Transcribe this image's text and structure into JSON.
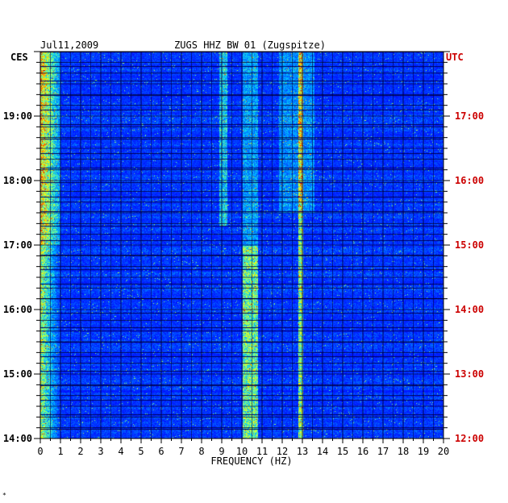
{
  "header": {
    "date": "Jul11,2009",
    "station": "ZUGS HHZ BW 01 (Zugspitze)",
    "left_tz": "CES",
    "right_tz": "UTC"
  },
  "chart_data": {
    "type": "heatmap",
    "title": "ZUGS HHZ BW 01 (Zugspitze)",
    "date": "Jul11,2009",
    "xlabel": "FREQUENCY (HZ)",
    "xlim": [
      0,
      20
    ],
    "x_ticks": [
      "0",
      "1",
      "2",
      "3",
      "4",
      "5",
      "6",
      "7",
      "8",
      "9",
      "10",
      "11",
      "12",
      "13",
      "14",
      "15",
      "16",
      "17",
      "18",
      "19",
      "20"
    ],
    "y_left_label": "CES",
    "y_right_label": "UTC",
    "y_range_hours_local": [
      14.0,
      20.0
    ],
    "y_ticks_left": [
      {
        "value": 19,
        "label": "19:00"
      },
      {
        "value": 18,
        "label": "18:00"
      },
      {
        "value": 17,
        "label": "17:00"
      },
      {
        "value": 16,
        "label": "16:00"
      },
      {
        "value": 15,
        "label": "15:00"
      },
      {
        "value": 14,
        "label": "14:00"
      }
    ],
    "y_ticks_right": [
      {
        "value": 19,
        "label": "17:00"
      },
      {
        "value": 18,
        "label": "16:00"
      },
      {
        "value": 17,
        "label": "15:00"
      },
      {
        "value": 16,
        "label": "14:00"
      },
      {
        "value": 15,
        "label": "13:00"
      },
      {
        "value": 14,
        "label": "12:00"
      }
    ],
    "colormap": [
      "#00008c",
      "#0000ff",
      "#0060ff",
      "#00c8ff",
      "#80ff80",
      "#ffff00",
      "#ff6000",
      "#d00000"
    ],
    "right_label_color": "#cc0000",
    "energy_bands": [
      {
        "f_low": 0.0,
        "f_high": 1.0,
        "intensity": "high"
      },
      {
        "f_low": 8.9,
        "f_high": 9.2,
        "intensity": "medium"
      },
      {
        "f_low": 10.0,
        "f_high": 10.8,
        "intensity": "high"
      },
      {
        "f_low": 12.8,
        "f_high": 13.0,
        "intensity": "high"
      }
    ]
  },
  "footer": {
    "mark": "*"
  }
}
